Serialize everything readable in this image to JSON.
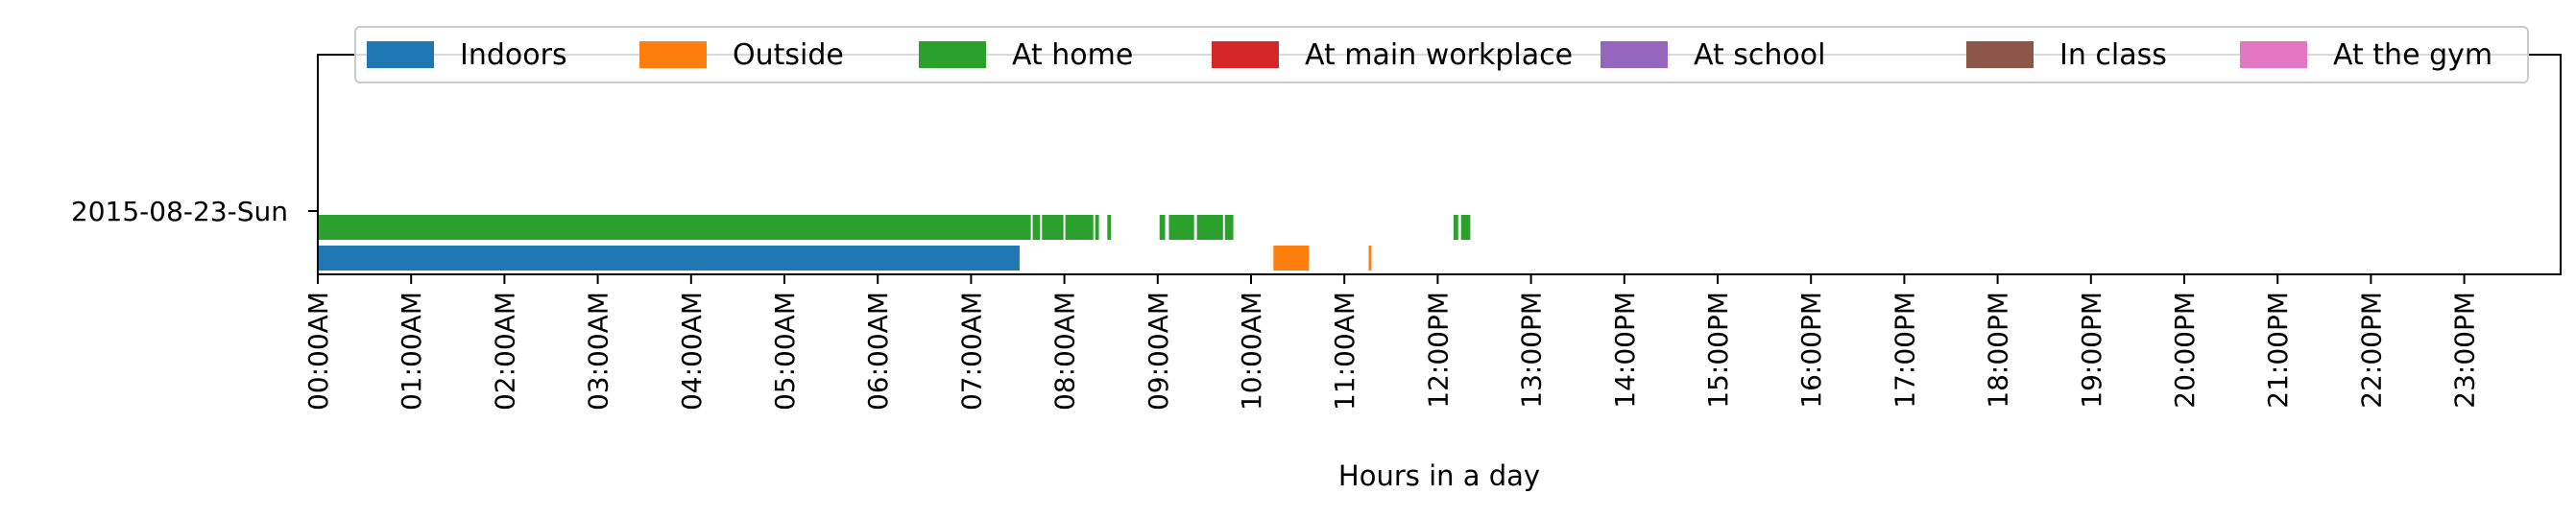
{
  "chart_data": {
    "type": "timeline",
    "xlabel": "Hours in a day",
    "x_unit": "hours",
    "xlim": [
      0,
      24
    ],
    "x_ticks": [
      0,
      1,
      2,
      3,
      4,
      5,
      6,
      7,
      8,
      9,
      10,
      11,
      12,
      13,
      14,
      15,
      16,
      17,
      18,
      19,
      20,
      21,
      22,
      23
    ],
    "x_tick_labels": [
      "00:00AM",
      "01:00AM",
      "02:00AM",
      "03:00AM",
      "04:00AM",
      "05:00AM",
      "06:00AM",
      "07:00AM",
      "08:00AM",
      "09:00AM",
      "10:00AM",
      "11:00AM",
      "12:00PM",
      "13:00PM",
      "14:00PM",
      "15:00PM",
      "16:00PM",
      "17:00PM",
      "18:00PM",
      "19:00PM",
      "20:00PM",
      "21:00PM",
      "22:00PM",
      "23:00PM"
    ],
    "y_label": "2015-08-23-Sun",
    "legend_placement": "top",
    "grid": false,
    "series": [
      {
        "name": "Indoors",
        "color": "#1f77b4",
        "row": 1,
        "intervals": [
          [
            0.0,
            7.52
          ]
        ]
      },
      {
        "name": "Outside",
        "color": "#ff7f0e",
        "row": 1,
        "intervals": [
          [
            10.24,
            10.62
          ],
          [
            11.26,
            11.29
          ]
        ]
      },
      {
        "name": "At home",
        "color": "#2ca02c",
        "row": 0,
        "intervals": [
          [
            0.0,
            7.64
          ],
          [
            7.66,
            7.74
          ],
          [
            7.76,
            7.99
          ],
          [
            8.01,
            8.31
          ],
          [
            8.33,
            8.37
          ],
          [
            8.46,
            8.5
          ],
          [
            9.02,
            9.08
          ],
          [
            9.12,
            9.39
          ],
          [
            9.42,
            9.7
          ],
          [
            9.72,
            9.81
          ],
          [
            12.17,
            12.22
          ],
          [
            12.25,
            12.35
          ]
        ]
      },
      {
        "name": "At main workplace",
        "color": "#d62728",
        "row": 0,
        "intervals": []
      },
      {
        "name": "At school",
        "color": "#9467bd",
        "row": 0,
        "intervals": []
      },
      {
        "name": "In class",
        "color": "#8c564b",
        "row": 0,
        "intervals": []
      },
      {
        "name": "At the gym",
        "color": "#e377c2",
        "row": 0,
        "intervals": []
      }
    ]
  }
}
